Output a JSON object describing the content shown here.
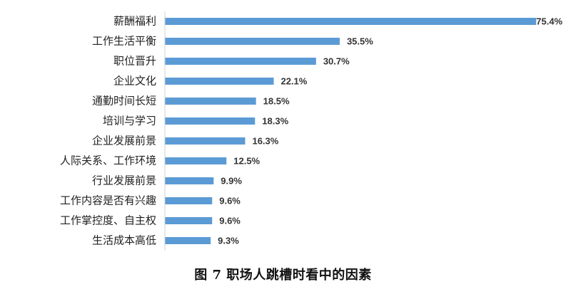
{
  "caption": "图 7  职场人跳槽时看中的因素",
  "colors": {
    "bar": "#5b9bd5",
    "axis": "#d0d0d0",
    "label": "#222222",
    "value_label": "#333333"
  },
  "chart_data": {
    "type": "bar",
    "orientation": "horizontal",
    "categories": [
      "薪酬福利",
      "工作生活平衡",
      "职位晋升",
      "企业文化",
      "通勤时间长短",
      "培训与学习",
      "企业发展前景",
      "人际关系、工作环境",
      "行业发展前景",
      "工作内容是否有兴趣",
      "工作掌控度、自主权",
      "生活成本高低"
    ],
    "values": [
      75.4,
      35.5,
      30.7,
      22.1,
      18.5,
      18.3,
      16.3,
      12.5,
      9.9,
      9.6,
      9.6,
      9.3
    ],
    "value_labels": [
      "75.4%",
      "35.5%",
      "30.7%",
      "22.1%",
      "18.5%",
      "18.3%",
      "16.3%",
      "12.5%",
      "9.9%",
      "9.6%",
      "9.6%",
      "9.3%"
    ],
    "unit": "%",
    "xlim": [
      0,
      80
    ],
    "grid": false,
    "legend": "none"
  }
}
